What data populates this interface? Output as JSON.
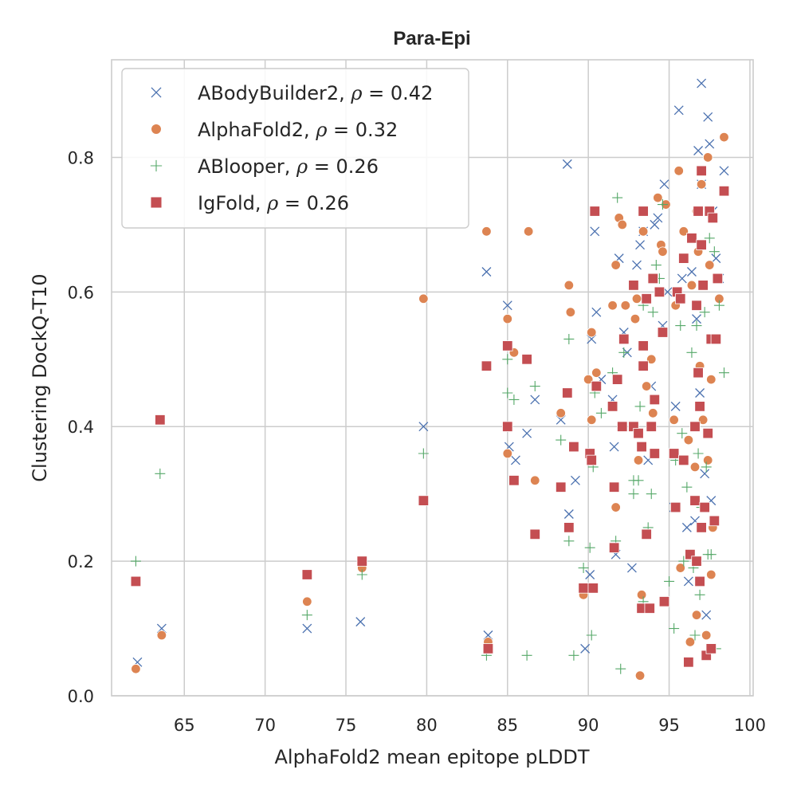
{
  "chart_data": {
    "type": "scatter",
    "title": "Para-Epi",
    "xlabel": "AlphaFold2 mean epitope pLDDT",
    "ylabel": "Clustering DockQ-T10",
    "xlim": [
      60.5,
      100.2
    ],
    "ylim": [
      0.0,
      0.945
    ],
    "x_ticks": [
      65,
      70,
      75,
      80,
      85,
      90,
      95,
      100
    ],
    "y_ticks": [
      0.0,
      0.2,
      0.4,
      0.6,
      0.8
    ],
    "x_tick_labels": [
      "65",
      "70",
      "75",
      "80",
      "85",
      "90",
      "95",
      "100"
    ],
    "y_tick_labels": [
      "0.0",
      "0.2",
      "0.4",
      "0.6",
      "0.8"
    ],
    "grid": true,
    "legend_position": "top-left",
    "series": [
      {
        "name": "ABodyBuilder2",
        "legend_prefix": "ABodyBuilder2, ",
        "legend_suffix": " = 0.42",
        "marker": "x",
        "color": "#4c72b0",
        "points": [
          [
            62.1,
            0.05
          ],
          [
            63.6,
            0.1
          ],
          [
            72.6,
            0.1
          ],
          [
            75.9,
            0.11
          ],
          [
            79.8,
            0.4
          ],
          [
            83.7,
            0.63
          ],
          [
            83.8,
            0.09
          ],
          [
            85.0,
            0.58
          ],
          [
            85.1,
            0.37
          ],
          [
            85.5,
            0.35
          ],
          [
            86.2,
            0.39
          ],
          [
            86.7,
            0.44
          ],
          [
            88.3,
            0.41
          ],
          [
            88.7,
            0.79
          ],
          [
            88.8,
            0.27
          ],
          [
            89.2,
            0.32
          ],
          [
            89.8,
            0.07
          ],
          [
            90.1,
            0.18
          ],
          [
            90.2,
            0.53
          ],
          [
            90.4,
            0.69
          ],
          [
            90.5,
            0.57
          ],
          [
            90.8,
            0.47
          ],
          [
            91.5,
            0.44
          ],
          [
            91.6,
            0.37
          ],
          [
            91.7,
            0.21
          ],
          [
            91.9,
            0.65
          ],
          [
            92.2,
            0.54
          ],
          [
            92.4,
            0.51
          ],
          [
            92.7,
            0.19
          ],
          [
            93.0,
            0.64
          ],
          [
            93.2,
            0.67
          ],
          [
            93.4,
            0.69
          ],
          [
            93.6,
            0.24
          ],
          [
            93.7,
            0.35
          ],
          [
            93.9,
            0.46
          ],
          [
            94.1,
            0.7
          ],
          [
            94.3,
            0.71
          ],
          [
            94.6,
            0.55
          ],
          [
            94.7,
            0.76
          ],
          [
            94.9,
            0.6
          ],
          [
            95.3,
            0.28
          ],
          [
            95.4,
            0.43
          ],
          [
            95.6,
            0.87
          ],
          [
            95.8,
            0.62
          ],
          [
            96.1,
            0.25
          ],
          [
            96.2,
            0.17
          ],
          [
            96.4,
            0.63
          ],
          [
            96.6,
            0.26
          ],
          [
            96.7,
            0.56
          ],
          [
            96.8,
            0.81
          ],
          [
            96.9,
            0.45
          ],
          [
            97.0,
            0.76
          ],
          [
            97.0,
            0.91
          ],
          [
            97.2,
            0.33
          ],
          [
            97.3,
            0.12
          ],
          [
            97.4,
            0.86
          ],
          [
            97.5,
            0.82
          ],
          [
            97.6,
            0.29
          ],
          [
            97.7,
            0.72
          ],
          [
            97.9,
            0.65
          ],
          [
            98.1,
            0.62
          ],
          [
            98.4,
            0.78
          ]
        ]
      },
      {
        "name": "AlphaFold2",
        "legend_prefix": "AlphaFold2, ",
        "legend_suffix": " = 0.32",
        "marker": "o",
        "color": "#dd8452",
        "points": [
          [
            62.0,
            0.04
          ],
          [
            63.6,
            0.09
          ],
          [
            72.6,
            0.14
          ],
          [
            76.0,
            0.19
          ],
          [
            79.8,
            0.59
          ],
          [
            83.7,
            0.69
          ],
          [
            83.8,
            0.08
          ],
          [
            85.0,
            0.56
          ],
          [
            85.0,
            0.36
          ],
          [
            85.4,
            0.51
          ],
          [
            86.3,
            0.69
          ],
          [
            86.7,
            0.32
          ],
          [
            88.3,
            0.42
          ],
          [
            88.8,
            0.61
          ],
          [
            88.9,
            0.57
          ],
          [
            89.7,
            0.15
          ],
          [
            90.0,
            0.47
          ],
          [
            90.2,
            0.54
          ],
          [
            90.2,
            0.41
          ],
          [
            90.4,
            0.72
          ],
          [
            90.5,
            0.48
          ],
          [
            91.5,
            0.58
          ],
          [
            91.7,
            0.64
          ],
          [
            91.7,
            0.28
          ],
          [
            91.9,
            0.71
          ],
          [
            92.1,
            0.7
          ],
          [
            92.3,
            0.58
          ],
          [
            92.9,
            0.56
          ],
          [
            93.0,
            0.59
          ],
          [
            93.1,
            0.35
          ],
          [
            93.2,
            0.03
          ],
          [
            93.3,
            0.15
          ],
          [
            93.4,
            0.69
          ],
          [
            93.6,
            0.46
          ],
          [
            93.9,
            0.5
          ],
          [
            94.0,
            0.42
          ],
          [
            94.3,
            0.74
          ],
          [
            94.5,
            0.67
          ],
          [
            94.6,
            0.66
          ],
          [
            94.8,
            0.73
          ],
          [
            95.3,
            0.41
          ],
          [
            95.4,
            0.58
          ],
          [
            95.6,
            0.78
          ],
          [
            95.7,
            0.19
          ],
          [
            95.9,
            0.69
          ],
          [
            96.2,
            0.38
          ],
          [
            96.3,
            0.08
          ],
          [
            96.4,
            0.61
          ],
          [
            96.6,
            0.34
          ],
          [
            96.7,
            0.12
          ],
          [
            96.7,
            0.72
          ],
          [
            96.8,
            0.66
          ],
          [
            96.9,
            0.49
          ],
          [
            97.0,
            0.76
          ],
          [
            97.1,
            0.41
          ],
          [
            97.3,
            0.09
          ],
          [
            97.4,
            0.8
          ],
          [
            97.4,
            0.35
          ],
          [
            97.5,
            0.64
          ],
          [
            97.6,
            0.18
          ],
          [
            97.6,
            0.47
          ],
          [
            97.7,
            0.25
          ],
          [
            98.1,
            0.59
          ],
          [
            98.4,
            0.83
          ]
        ]
      },
      {
        "name": "ABlooper",
        "legend_prefix": "ABlooper, ",
        "legend_suffix": " = 0.26",
        "marker": "+",
        "color": "#55a868",
        "points": [
          [
            62.0,
            0.2
          ],
          [
            63.5,
            0.33
          ],
          [
            72.6,
            0.12
          ],
          [
            76.0,
            0.18
          ],
          [
            79.8,
            0.36
          ],
          [
            83.7,
            0.06
          ],
          [
            85.0,
            0.45
          ],
          [
            85.0,
            0.5
          ],
          [
            85.4,
            0.44
          ],
          [
            86.2,
            0.06
          ],
          [
            86.7,
            0.46
          ],
          [
            88.3,
            0.38
          ],
          [
            88.8,
            0.53
          ],
          [
            88.8,
            0.23
          ],
          [
            89.1,
            0.06
          ],
          [
            89.7,
            0.19
          ],
          [
            90.1,
            0.22
          ],
          [
            90.2,
            0.09
          ],
          [
            90.3,
            0.34
          ],
          [
            90.4,
            0.45
          ],
          [
            90.8,
            0.42
          ],
          [
            91.5,
            0.48
          ],
          [
            91.7,
            0.23
          ],
          [
            91.8,
            0.74
          ],
          [
            92.0,
            0.04
          ],
          [
            92.2,
            0.51
          ],
          [
            92.8,
            0.3
          ],
          [
            92.8,
            0.32
          ],
          [
            93.1,
            0.32
          ],
          [
            93.2,
            0.43
          ],
          [
            93.4,
            0.14
          ],
          [
            93.4,
            0.58
          ],
          [
            93.7,
            0.25
          ],
          [
            93.9,
            0.3
          ],
          [
            94.0,
            0.57
          ],
          [
            94.2,
            0.64
          ],
          [
            94.4,
            0.62
          ],
          [
            94.6,
            0.73
          ],
          [
            95.0,
            0.17
          ],
          [
            95.3,
            0.1
          ],
          [
            95.4,
            0.35
          ],
          [
            95.7,
            0.55
          ],
          [
            95.8,
            0.39
          ],
          [
            95.9,
            0.2
          ],
          [
            96.1,
            0.31
          ],
          [
            96.4,
            0.51
          ],
          [
            96.5,
            0.19
          ],
          [
            96.6,
            0.09
          ],
          [
            96.7,
            0.55
          ],
          [
            96.8,
            0.36
          ],
          [
            96.9,
            0.15
          ],
          [
            97.0,
            0.28
          ],
          [
            97.2,
            0.57
          ],
          [
            97.3,
            0.34
          ],
          [
            97.4,
            0.21
          ],
          [
            97.5,
            0.68
          ],
          [
            97.6,
            0.21
          ],
          [
            97.8,
            0.66
          ],
          [
            97.9,
            0.07
          ],
          [
            98.1,
            0.58
          ],
          [
            98.4,
            0.48
          ]
        ]
      },
      {
        "name": "IgFold",
        "legend_prefix": "IgFold, ",
        "legend_suffix": " = 0.26",
        "marker": "s",
        "color": "#c44e52",
        "points": [
          [
            62.0,
            0.17
          ],
          [
            63.5,
            0.41
          ],
          [
            72.6,
            0.18
          ],
          [
            76.0,
            0.2
          ],
          [
            79.8,
            0.29
          ],
          [
            83.7,
            0.49
          ],
          [
            83.8,
            0.07
          ],
          [
            85.0,
            0.52
          ],
          [
            85.0,
            0.4
          ],
          [
            85.4,
            0.32
          ],
          [
            86.2,
            0.5
          ],
          [
            86.7,
            0.24
          ],
          [
            88.3,
            0.31
          ],
          [
            88.7,
            0.45
          ],
          [
            88.8,
            0.25
          ],
          [
            89.1,
            0.37
          ],
          [
            89.7,
            0.16
          ],
          [
            90.1,
            0.36
          ],
          [
            90.2,
            0.35
          ],
          [
            90.3,
            0.16
          ],
          [
            90.4,
            0.72
          ],
          [
            90.5,
            0.46
          ],
          [
            91.5,
            0.43
          ],
          [
            91.6,
            0.31
          ],
          [
            91.6,
            0.22
          ],
          [
            91.8,
            0.47
          ],
          [
            92.1,
            0.4
          ],
          [
            92.2,
            0.53
          ],
          [
            92.8,
            0.61
          ],
          [
            92.8,
            0.4
          ],
          [
            93.1,
            0.39
          ],
          [
            93.3,
            0.13
          ],
          [
            93.3,
            0.37
          ],
          [
            93.4,
            0.72
          ],
          [
            93.4,
            0.52
          ],
          [
            93.4,
            0.49
          ],
          [
            93.6,
            0.24
          ],
          [
            93.6,
            0.59
          ],
          [
            93.8,
            0.13
          ],
          [
            93.9,
            0.4
          ],
          [
            94.0,
            0.62
          ],
          [
            94.1,
            0.44
          ],
          [
            94.1,
            0.36
          ],
          [
            94.4,
            0.6
          ],
          [
            94.6,
            0.54
          ],
          [
            94.7,
            0.14
          ],
          [
            95.3,
            0.36
          ],
          [
            95.4,
            0.28
          ],
          [
            95.5,
            0.6
          ],
          [
            95.7,
            0.59
          ],
          [
            95.9,
            0.35
          ],
          [
            95.9,
            0.65
          ],
          [
            96.2,
            0.05
          ],
          [
            96.3,
            0.21
          ],
          [
            96.4,
            0.68
          ],
          [
            96.6,
            0.29
          ],
          [
            96.6,
            0.4
          ],
          [
            96.7,
            0.2
          ],
          [
            96.7,
            0.58
          ],
          [
            96.8,
            0.72
          ],
          [
            96.8,
            0.48
          ],
          [
            96.9,
            0.43
          ],
          [
            96.9,
            0.17
          ],
          [
            97.0,
            0.67
          ],
          [
            97.0,
            0.78
          ],
          [
            97.0,
            0.25
          ],
          [
            97.1,
            0.61
          ],
          [
            97.2,
            0.28
          ],
          [
            97.3,
            0.06
          ],
          [
            97.4,
            0.39
          ],
          [
            97.5,
            0.72
          ],
          [
            97.6,
            0.07
          ],
          [
            97.6,
            0.53
          ],
          [
            97.7,
            0.71
          ],
          [
            97.8,
            0.26
          ],
          [
            97.9,
            0.53
          ],
          [
            98.0,
            0.62
          ],
          [
            98.4,
            0.75
          ]
        ]
      }
    ]
  }
}
